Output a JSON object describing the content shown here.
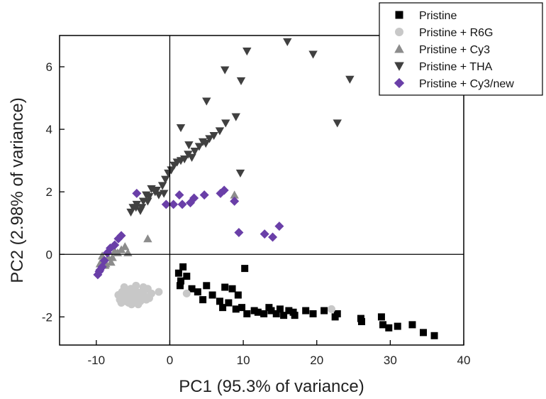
{
  "chart_data": {
    "type": "scatter",
    "xlabel": "PC1 (95.3% of variance)",
    "ylabel": "PC2 (2.98% of variance)",
    "xlim": [
      -15,
      40
    ],
    "ylim": [
      -2.9,
      7
    ],
    "xticks": [
      -10,
      0,
      10,
      20,
      30,
      40
    ],
    "yticks": [
      -2,
      0,
      2,
      4,
      6
    ],
    "xtick_labels": [
      "-10",
      "0",
      "10",
      "20",
      "30",
      "40"
    ],
    "ytick_labels": [
      "-2",
      "0",
      "2",
      "4",
      "6"
    ],
    "zero_lines": true,
    "grid": false,
    "legend_position": "top-right",
    "series": [
      {
        "name": "Pristine",
        "marker": "square",
        "color": "#000000",
        "points": [
          [
            1.2,
            -0.6
          ],
          [
            1.8,
            -0.4
          ],
          [
            2.3,
            -0.7
          ],
          [
            1.5,
            -0.85
          ],
          [
            1.4,
            -1.0
          ],
          [
            3.0,
            -1.1
          ],
          [
            3.8,
            -1.2
          ],
          [
            5.0,
            -1.0
          ],
          [
            5.8,
            -1.3
          ],
          [
            4.5,
            -1.45
          ],
          [
            6.8,
            -1.5
          ],
          [
            7.5,
            -1.05
          ],
          [
            8.5,
            -1.1
          ],
          [
            9.3,
            -1.3
          ],
          [
            10.2,
            -0.45
          ],
          [
            7.2,
            -1.7
          ],
          [
            8.0,
            -1.55
          ],
          [
            9.0,
            -1.75
          ],
          [
            9.8,
            -1.7
          ],
          [
            10.5,
            -1.9
          ],
          [
            11.5,
            -1.8
          ],
          [
            12.8,
            -1.9
          ],
          [
            13.8,
            -1.8
          ],
          [
            14.5,
            -1.9
          ],
          [
            15.0,
            -1.75
          ],
          [
            15.5,
            -1.95
          ],
          [
            16.2,
            -1.8
          ],
          [
            16.8,
            -1.85
          ],
          [
            18.5,
            -1.8
          ],
          [
            19.5,
            -1.9
          ],
          [
            21.0,
            -1.8
          ],
          [
            22.5,
            -2.0
          ],
          [
            22.8,
            -1.9
          ],
          [
            26.0,
            -2.05
          ],
          [
            26.1,
            -2.15
          ],
          [
            28.8,
            -2.0
          ],
          [
            29.0,
            -2.25
          ],
          [
            29.8,
            -2.35
          ],
          [
            31.0,
            -2.3
          ],
          [
            33.0,
            -2.25
          ],
          [
            34.5,
            -2.5
          ],
          [
            36.0,
            -2.6
          ],
          [
            12.0,
            -1.85
          ],
          [
            13.5,
            -1.7
          ],
          [
            17.0,
            -1.95
          ]
        ]
      },
      {
        "name": "Pristine + R6G",
        "marker": "circle",
        "color": "#c8c8c8",
        "points": [
          [
            -7.0,
            -1.3
          ],
          [
            -6.8,
            -1.45
          ],
          [
            -6.5,
            -1.2
          ],
          [
            -6.3,
            -1.35
          ],
          [
            -6.0,
            -1.5
          ],
          [
            -5.8,
            -1.25
          ],
          [
            -5.5,
            -1.4
          ],
          [
            -5.3,
            -1.1
          ],
          [
            -5.0,
            -1.3
          ],
          [
            -4.8,
            -1.45
          ],
          [
            -4.5,
            -1.2
          ],
          [
            -4.2,
            -1.35
          ],
          [
            -4.0,
            -1.5
          ],
          [
            -3.8,
            -1.2
          ],
          [
            -3.5,
            -1.3
          ],
          [
            -3.2,
            -1.45
          ],
          [
            -6.2,
            -1.05
          ],
          [
            -5.6,
            -1.55
          ],
          [
            -4.6,
            -1.0
          ],
          [
            -3.0,
            -1.1
          ],
          [
            -2.5,
            -1.25
          ],
          [
            -1.5,
            -1.2
          ],
          [
            -2.8,
            -1.4
          ],
          [
            -3.6,
            -1.05
          ],
          [
            -5.2,
            -1.6
          ],
          [
            -4.3,
            -1.6
          ],
          [
            -6.6,
            -1.55
          ],
          [
            2.3,
            -1.25
          ],
          [
            22.0,
            -1.75
          ]
        ]
      },
      {
        "name": "Pristine + Cy3",
        "marker": "triangle-up",
        "color": "#8c8c8c",
        "points": [
          [
            -9.5,
            -0.3
          ],
          [
            -9.0,
            -0.15
          ],
          [
            -8.7,
            -0.3
          ],
          [
            -8.4,
            -0.1
          ],
          [
            -8.0,
            -0.25
          ],
          [
            -7.5,
            0.1
          ],
          [
            -7.1,
            0.05
          ],
          [
            -6.6,
            0.15
          ],
          [
            -6.1,
            0.25
          ],
          [
            -5.7,
            0.05
          ],
          [
            -3.0,
            0.5
          ],
          [
            -8.8,
            -0.35
          ],
          [
            -9.2,
            -0.05
          ],
          [
            -7.8,
            -0.1
          ],
          [
            8.8,
            1.9
          ]
        ]
      },
      {
        "name": "Pristine + THA",
        "marker": "triangle-down",
        "color": "#404040",
        "points": [
          [
            -5.0,
            1.5
          ],
          [
            -4.5,
            1.6
          ],
          [
            -4.0,
            1.4
          ],
          [
            -3.6,
            1.7
          ],
          [
            -3.2,
            1.9
          ],
          [
            -2.8,
            1.85
          ],
          [
            -2.5,
            2.1
          ],
          [
            -2.0,
            2.0
          ],
          [
            -1.5,
            1.9
          ],
          [
            -1.0,
            2.2
          ],
          [
            -0.6,
            2.4
          ],
          [
            -0.2,
            2.6
          ],
          [
            0.2,
            2.7
          ],
          [
            0.6,
            2.85
          ],
          [
            1.0,
            2.95
          ],
          [
            1.5,
            3.0
          ],
          [
            2.0,
            3.05
          ],
          [
            2.5,
            3.2
          ],
          [
            3.0,
            3.1
          ],
          [
            3.4,
            3.3
          ],
          [
            4.0,
            3.45
          ],
          [
            4.5,
            3.6
          ],
          [
            4.9,
            3.55
          ],
          [
            5.4,
            3.7
          ],
          [
            6.0,
            3.8
          ],
          [
            6.8,
            3.95
          ],
          [
            7.6,
            4.2
          ],
          [
            9.0,
            4.4
          ],
          [
            5.0,
            4.9
          ],
          [
            1.5,
            4.05
          ],
          [
            2.6,
            3.5
          ],
          [
            -4.6,
            1.5
          ],
          [
            -3.8,
            1.5
          ],
          [
            -3.0,
            1.7
          ],
          [
            -1.8,
            2.05
          ],
          [
            -0.8,
            1.95
          ],
          [
            9.6,
            2.6
          ],
          [
            7.5,
            5.9
          ],
          [
            9.7,
            5.55
          ],
          [
            10.5,
            6.5
          ],
          [
            16.0,
            6.8
          ],
          [
            19.5,
            6.4
          ],
          [
            24.5,
            5.6
          ],
          [
            22.8,
            4.2
          ],
          [
            -5.3,
            1.35
          ]
        ]
      },
      {
        "name": "Pristine + Cy3/new",
        "marker": "diamond",
        "color": "#6a3fa8",
        "points": [
          [
            -9.8,
            -0.65
          ],
          [
            -9.5,
            -0.5
          ],
          [
            -9.2,
            -0.4
          ],
          [
            -8.9,
            -0.2
          ],
          [
            -8.5,
            0.05
          ],
          [
            -8.1,
            0.2
          ],
          [
            -7.5,
            0.3
          ],
          [
            -7.0,
            0.5
          ],
          [
            -6.6,
            0.6
          ],
          [
            -4.5,
            1.95
          ],
          [
            -0.5,
            1.6
          ],
          [
            0.5,
            1.6
          ],
          [
            1.3,
            1.9
          ],
          [
            1.7,
            1.6
          ],
          [
            2.8,
            1.65
          ],
          [
            3.3,
            1.8
          ],
          [
            4.7,
            1.9
          ],
          [
            6.9,
            1.95
          ],
          [
            7.4,
            2.05
          ],
          [
            8.8,
            1.7
          ],
          [
            9.4,
            0.7
          ],
          [
            12.9,
            0.65
          ],
          [
            14.0,
            0.55
          ],
          [
            14.9,
            0.9
          ],
          [
            -9.6,
            -0.55
          ]
        ]
      }
    ]
  }
}
